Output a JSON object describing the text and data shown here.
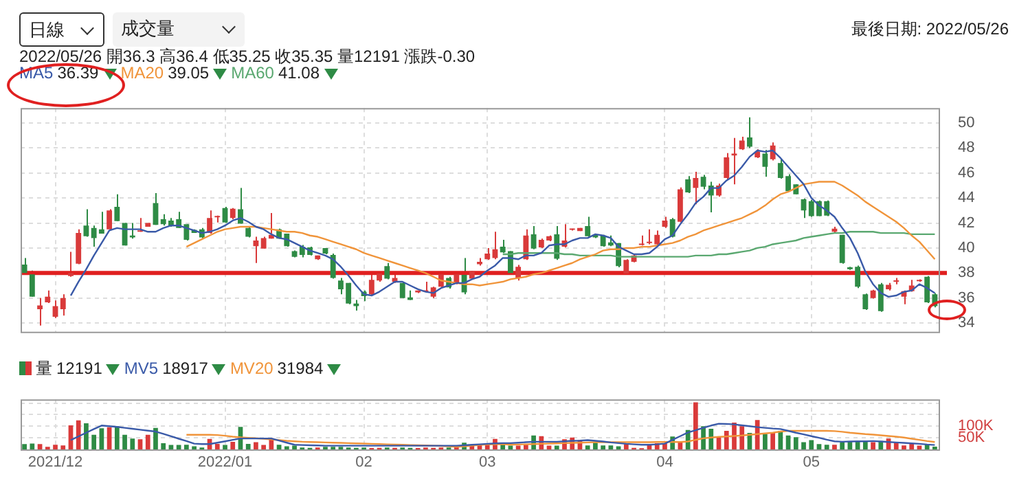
{
  "chart_data": [
    {
      "type": "candlestick",
      "title": "最後日期: 2022/05/26",
      "annotations": [
        "日線",
        "成交量",
        "2022/05/26 開36.3 高36.4 低35.25 收35.35 量12191 漲跌-0.30",
        "36.39",
        "39.05",
        "41.08"
      ],
      "categories": [
        null,
        null,
        null,
        null,
        "2021/12",
        null,
        null,
        null,
        null,
        null,
        null,
        null,
        null,
        null,
        null,
        null,
        null,
        null,
        null,
        null,
        null,
        null,
        null,
        null,
        null,
        null,
        "2022/01",
        null,
        null,
        null,
        null,
        null,
        null,
        null,
        null,
        null,
        null,
        null,
        null,
        null,
        null,
        null,
        null,
        null,
        "02",
        null,
        null,
        null,
        null,
        null,
        null,
        null,
        null,
        null,
        null,
        null,
        null,
        null,
        null,
        null,
        "03",
        null,
        null,
        null,
        null,
        null,
        null,
        null,
        null,
        null,
        null,
        null,
        null,
        null,
        null,
        null,
        null,
        null,
        null,
        null,
        null,
        null,
        null,
        "04",
        null,
        null,
        null,
        null,
        null,
        null,
        null,
        null,
        null,
        null,
        null,
        null,
        null,
        null,
        null,
        null,
        null,
        null,
        "05",
        null,
        null,
        null,
        null,
        null,
        null,
        null,
        null,
        null,
        null,
        null,
        null,
        null,
        null,
        null,
        null
      ],
      "ohlc": [
        [
          38.67,
          39.2,
          38.0,
          38.0
        ],
        [
          37.9,
          38.2,
          36.1,
          36.1
        ],
        [
          35.1,
          36.0,
          33.8,
          35.4
        ],
        [
          35.65,
          36.6,
          35.6,
          36.1
        ],
        [
          34.5,
          35.8,
          34.4,
          35.35
        ],
        [
          35.1,
          36.3,
          34.6,
          36.0
        ],
        [
          37.75,
          39.7,
          37.7,
          38.0
        ],
        [
          38.75,
          41.5,
          38.7,
          41.2
        ],
        [
          41.8,
          43.1,
          40.9,
          40.95
        ],
        [
          41.6,
          41.8,
          40.1,
          40.8
        ],
        [
          41.5,
          42.9,
          41.15,
          41.15
        ],
        [
          41.5,
          43.1,
          41.4,
          43.0
        ],
        [
          43.3,
          44.3,
          42.15,
          42.15
        ],
        [
          42.0,
          42.0,
          40.2,
          40.2
        ],
        [
          41.0,
          42.0,
          40.75,
          40.85
        ],
        [
          41.3,
          42.4,
          41.3,
          41.35
        ],
        [
          41.7,
          42.0,
          41.7,
          42.0
        ],
        [
          43.6,
          44.4,
          41.85,
          41.85
        ],
        [
          42.3,
          42.7,
          41.8,
          41.9
        ],
        [
          42.2,
          42.4,
          41.7,
          41.8
        ],
        [
          42.3,
          42.9,
          41.6,
          41.6
        ],
        [
          41.9,
          41.9,
          40.6,
          40.65
        ],
        [
          41.45,
          41.5,
          41.2,
          41.2
        ],
        [
          41.5,
          41.6,
          40.75,
          40.85
        ],
        [
          41.2,
          43.0,
          41.15,
          42.4
        ],
        [
          42.45,
          42.6,
          42.05,
          42.5
        ],
        [
          43.2,
          43.3,
          42.0,
          42.05
        ],
        [
          42.4,
          43.2,
          42.3,
          43.15
        ],
        [
          43.1,
          44.8,
          41.95,
          41.95
        ],
        [
          41.6,
          41.7,
          40.85,
          40.9
        ],
        [
          40.15,
          40.9,
          38.8,
          40.6
        ],
        [
          39.95,
          40.9,
          39.95,
          40.8
        ],
        [
          40.75,
          42.8,
          40.75,
          41.05
        ],
        [
          41.5,
          41.55,
          40.75,
          40.75
        ],
        [
          41.15,
          41.15,
          40.1,
          40.15
        ],
        [
          39.75,
          39.8,
          39.25,
          39.3
        ],
        [
          40.1,
          40.25,
          39.25,
          39.45
        ],
        [
          40.05,
          40.1,
          39.4,
          39.45
        ],
        [
          39.1,
          39.4,
          39.05,
          39.4
        ],
        [
          40.0,
          40.0,
          39.5,
          39.55
        ],
        [
          39.45,
          39.55,
          37.55,
          37.6
        ],
        [
          37.4,
          37.6,
          36.3,
          36.7
        ],
        [
          37.2,
          37.2,
          35.5,
          35.55
        ],
        [
          35.55,
          35.85,
          35.0,
          35.35
        ],
        [
          36.5,
          36.6,
          35.75,
          36.15
        ],
        [
          36.3,
          37.95,
          36.2,
          37.45
        ],
        [
          37.4,
          37.95,
          37.3,
          37.95
        ],
        [
          38.55,
          38.8,
          37.5,
          37.55
        ],
        [
          37.3,
          38.1,
          37.2,
          37.6
        ],
        [
          37.2,
          37.25,
          36.0,
          36.0
        ],
        [
          36.05,
          36.6,
          35.85,
          35.85
        ],
        [
          36.45,
          36.6,
          36.4,
          36.6
        ],
        [
          36.5,
          37.3,
          36.45,
          36.6
        ],
        [
          36.1,
          36.9,
          36.0,
          36.85
        ],
        [
          36.9,
          37.95,
          36.85,
          37.9
        ],
        [
          37.6,
          37.7,
          36.75,
          36.85
        ],
        [
          37.2,
          38.0,
          37.1,
          37.9
        ],
        [
          37.85,
          39.2,
          36.3,
          36.45
        ],
        [
          37.55,
          38.15,
          37.5,
          38.15
        ],
        [
          38.7,
          39.2,
          38.6,
          38.9
        ],
        [
          39.1,
          40.0,
          39.05,
          39.55
        ],
        [
          39.2,
          41.3,
          39.1,
          39.9
        ],
        [
          40.1,
          40.65,
          39.6,
          39.65
        ],
        [
          39.75,
          39.75,
          37.9,
          38.0
        ],
        [
          37.6,
          38.65,
          37.4,
          38.5
        ],
        [
          39.1,
          41.5,
          39.05,
          41.0
        ],
        [
          41.1,
          41.75,
          39.9,
          39.95
        ],
        [
          40.05,
          40.75,
          40.0,
          40.65
        ],
        [
          40.6,
          41.0,
          40.55,
          40.95
        ],
        [
          41.1,
          41.75,
          39.05,
          39.15
        ],
        [
          40.1,
          41.9,
          40.05,
          40.6
        ],
        [
          41.45,
          41.55,
          41.4,
          41.5
        ],
        [
          41.35,
          41.6,
          41.35,
          41.6
        ],
        [
          41.75,
          42.5,
          40.9,
          40.95
        ],
        [
          41.05,
          41.1,
          40.8,
          40.85
        ],
        [
          41.0,
          41.05,
          40.1,
          40.15
        ],
        [
          40.45,
          41.0,
          40.15,
          40.2
        ],
        [
          40.4,
          40.4,
          38.45,
          38.55
        ],
        [
          37.95,
          39.1,
          37.9,
          39.05
        ],
        [
          38.9,
          39.45,
          38.85,
          39.4
        ],
        [
          40.25,
          41.0,
          40.2,
          40.3
        ],
        [
          40.4,
          41.5,
          40.3,
          40.45
        ],
        [
          40.3,
          41.4,
          40.25,
          41.05
        ],
        [
          41.7,
          42.5,
          41.6,
          42.2
        ],
        [
          42.3,
          42.4,
          40.85,
          40.9
        ],
        [
          42.1,
          44.85,
          42.05,
          44.7
        ],
        [
          45.5,
          45.75,
          44.4,
          44.45
        ],
        [
          44.8,
          46.1,
          43.5,
          45.6
        ],
        [
          45.7,
          45.85,
          44.7,
          44.9
        ],
        [
          45.0,
          45.3,
          42.85,
          44.2
        ],
        [
          44.2,
          45.15,
          44.1,
          45.0
        ],
        [
          45.6,
          47.6,
          45.5,
          47.25
        ],
        [
          47.4,
          48.8,
          45.1,
          47.55
        ],
        [
          47.9,
          48.9,
          47.85,
          48.6
        ],
        [
          48.85,
          50.45,
          48.0,
          48.1
        ],
        [
          47.25,
          47.9,
          47.2,
          47.7
        ],
        [
          47.55,
          47.85,
          45.7,
          46.5
        ],
        [
          47.1,
          48.45,
          47.0,
          48.2
        ],
        [
          46.8,
          47.1,
          45.55,
          45.6
        ],
        [
          45.75,
          45.9,
          44.5,
          44.55
        ],
        [
          45.1,
          45.1,
          44.3,
          44.3
        ],
        [
          43.9,
          43.95,
          42.4,
          43.0
        ],
        [
          43.75,
          43.85,
          42.5,
          42.55
        ],
        [
          43.75,
          43.8,
          42.55,
          42.55
        ],
        [
          43.75,
          43.8,
          42.55,
          42.6
        ],
        [
          41.3,
          41.7,
          41.2,
          41.55
        ],
        [
          41.05,
          41.05,
          38.75,
          38.8
        ],
        [
          38.45,
          38.5,
          38.25,
          38.3
        ],
        [
          38.5,
          38.6,
          36.8,
          36.9
        ],
        [
          36.3,
          36.35,
          35.05,
          35.1
        ],
        [
          36.0,
          36.65,
          35.95,
          36.6
        ],
        [
          37.1,
          37.2,
          34.9,
          34.95
        ],
        [
          36.7,
          37.2,
          36.6,
          37.05
        ],
        [
          37.3,
          37.6,
          37.1,
          37.4
        ],
        [
          36.1,
          36.6,
          35.5,
          36.55
        ],
        [
          36.55,
          37.45,
          36.5,
          37.0
        ],
        [
          37.35,
          37.5,
          37.3,
          37.4
        ],
        [
          37.7,
          37.75,
          35.6,
          35.65
        ],
        [
          36.3,
          36.4,
          35.25,
          35.35
        ]
      ],
      "colors": [
        "#2e8b45",
        "#2e8b45",
        "#d93a3a",
        "#d93a3a",
        "#d93a3a",
        "#d93a3a",
        "#d93a3a",
        "#d93a3a",
        "#2e8b45",
        "#2e8b45",
        "#2e8b45",
        "#d93a3a",
        "#2e8b45",
        "#2e8b45",
        "#2e8b45",
        "#d93a3a",
        "#d93a3a",
        "#2e8b45",
        "#2e8b45",
        "#2e8b45",
        "#2e8b45",
        "#2e8b45",
        "#2e8b45",
        "#2e8b45",
        "#d93a3a",
        "#d93a3a",
        "#2e8b45",
        "#d93a3a",
        "#2e8b45",
        "#2e8b45",
        "#d93a3a",
        "#d93a3a",
        "#d93a3a",
        "#2e8b45",
        "#2e8b45",
        "#2e8b45",
        "#2e8b45",
        "#2e8b45",
        "#d93a3a",
        "#2e8b45",
        "#2e8b45",
        "#2e8b45",
        "#2e8b45",
        "#2e8b45",
        "#2e8b45",
        "#d93a3a",
        "#d93a3a",
        "#2e8b45",
        "#d93a3a",
        "#2e8b45",
        "#2e8b45",
        "#d93a3a",
        "#d93a3a",
        "#d93a3a",
        "#d93a3a",
        "#2e8b45",
        "#d93a3a",
        "#2e8b45",
        "#d93a3a",
        "#d93a3a",
        "#d93a3a",
        "#d93a3a",
        "#2e8b45",
        "#2e8b45",
        "#d93a3a",
        "#d93a3a",
        "#2e8b45",
        "#d93a3a",
        "#d93a3a",
        "#2e8b45",
        "#d93a3a",
        "#d93a3a",
        "#d93a3a",
        "#2e8b45",
        "#2e8b45",
        "#2e8b45",
        "#2e8b45",
        "#2e8b45",
        "#d93a3a",
        "#d93a3a",
        "#d93a3a",
        "#d93a3a",
        "#d93a3a",
        "#d93a3a",
        "#2e8b45",
        "#d93a3a",
        "#2e8b45",
        "#d93a3a",
        "#2e8b45",
        "#2e8b45",
        "#d93a3a",
        "#d93a3a",
        "#d93a3a",
        "#d93a3a",
        "#2e8b45",
        "#d93a3a",
        "#2e8b45",
        "#d93a3a",
        "#2e8b45",
        "#2e8b45",
        "#2e8b45",
        "#2e8b45",
        "#2e8b45",
        "#2e8b45",
        "#2e8b45",
        "#d93a3a",
        "#2e8b45",
        "#2e8b45",
        "#2e8b45",
        "#2e8b45",
        "#d93a3a",
        "#2e8b45",
        "#d93a3a",
        "#d93a3a",
        "#d93a3a",
        "#d93a3a",
        "#d93a3a",
        "#2e8b45",
        "#2e8b45"
      ],
      "series": [
        {
          "name": "MA5",
          "type": "line",
          "color": "#3a5aa8",
          "values": [
            null,
            null,
            null,
            null,
            null,
            null,
            36.2,
            37.3,
            38.3,
            39.4,
            40.4,
            41.4,
            41.6,
            41.5,
            41.5,
            41.5,
            41.3,
            41.3,
            41.6,
            41.8,
            41.8,
            41.6,
            41.4,
            41.2,
            41.3,
            41.5,
            41.8,
            42.2,
            42.4,
            42.1,
            41.7,
            41.5,
            41.1,
            40.8,
            40.7,
            40.4,
            40.1,
            39.8,
            39.6,
            39.4,
            39.1,
            38.5,
            37.8,
            37.0,
            36.3,
            36.2,
            36.5,
            36.9,
            37.3,
            37.3,
            37.0,
            36.7,
            36.5,
            36.4,
            36.8,
            37.0,
            37.2,
            37.2,
            37.5,
            37.7,
            38.2,
            38.6,
            39.2,
            39.2,
            39.1,
            39.4,
            39.4,
            39.6,
            40.2,
            40.3,
            40.3,
            40.6,
            40.8,
            40.8,
            41.1,
            41.0,
            40.8,
            40.1,
            39.8,
            39.5,
            39.5,
            39.6,
            40.1,
            40.7,
            41.0,
            41.9,
            42.7,
            43.6,
            44.1,
            44.8,
            44.8,
            45.4,
            45.8,
            46.5,
            47.3,
            47.8,
            47.7,
            47.8,
            47.2,
            46.5,
            45.8,
            45.1,
            44.0,
            43.4,
            43.0,
            42.5,
            41.6,
            40.8,
            39.6,
            38.1,
            37.1,
            36.4,
            36.1,
            36.2,
            36.5,
            36.6,
            37.1,
            36.8,
            36.4
          ]
        },
        {
          "name": "MA20",
          "type": "line",
          "color": "#f0943a",
          "values": [
            null,
            null,
            null,
            null,
            null,
            null,
            null,
            null,
            null,
            null,
            null,
            null,
            null,
            null,
            null,
            null,
            null,
            null,
            null,
            null,
            null,
            40.1,
            40.4,
            40.7,
            41.0,
            41.3,
            41.5,
            41.6,
            41.7,
            41.7,
            41.7,
            41.6,
            41.5,
            41.4,
            41.3,
            41.3,
            41.2,
            41.0,
            40.9,
            40.7,
            40.5,
            40.3,
            40.1,
            39.9,
            39.6,
            39.4,
            39.2,
            39.0,
            38.8,
            38.6,
            38.4,
            38.2,
            38.0,
            37.7,
            37.4,
            37.3,
            37.2,
            37.1,
            37.1,
            37.0,
            37.1,
            37.2,
            37.3,
            37.5,
            37.6,
            37.7,
            37.9,
            38.0,
            38.2,
            38.4,
            38.6,
            38.8,
            39.1,
            39.3,
            39.5,
            39.8,
            39.9,
            39.9,
            40.0,
            40.0,
            40.1,
            40.1,
            40.2,
            40.3,
            40.4,
            40.6,
            40.9,
            41.1,
            41.4,
            41.6,
            41.8,
            42.0,
            42.2,
            42.4,
            42.7,
            43.0,
            43.4,
            43.9,
            44.3,
            44.5,
            44.8,
            45.1,
            45.2,
            45.3,
            45.3,
            45.3,
            45.0,
            44.6,
            44.2,
            43.7,
            43.3,
            42.9,
            42.5,
            42.1,
            41.6,
            41.0,
            40.5,
            39.8,
            39.1
          ]
        },
        {
          "name": "MA60",
          "type": "line",
          "color": "#5aa870",
          "values": [
            null,
            null,
            null,
            null,
            null,
            null,
            null,
            null,
            null,
            null,
            null,
            null,
            null,
            null,
            null,
            null,
            null,
            null,
            null,
            null,
            null,
            null,
            null,
            null,
            null,
            null,
            null,
            null,
            null,
            null,
            null,
            null,
            null,
            null,
            null,
            null,
            null,
            null,
            null,
            null,
            null,
            null,
            null,
            null,
            null,
            null,
            null,
            null,
            null,
            null,
            null,
            null,
            null,
            null,
            null,
            null,
            null,
            null,
            null,
            null,
            null,
            null,
            39.5,
            39.5,
            39.6,
            39.6,
            39.6,
            39.6,
            39.6,
            39.6,
            39.5,
            39.5,
            39.4,
            39.4,
            39.4,
            39.4,
            39.4,
            39.3,
            39.3,
            39.3,
            39.3,
            39.3,
            39.3,
            39.3,
            39.3,
            39.3,
            39.3,
            39.4,
            39.4,
            39.4,
            39.5,
            39.5,
            39.6,
            39.7,
            39.8,
            40.0,
            40.1,
            40.3,
            40.4,
            40.5,
            40.6,
            40.8,
            40.9,
            41.0,
            41.1,
            41.2,
            41.2,
            41.3,
            41.3,
            41.3,
            41.3,
            41.2,
            41.2,
            41.2,
            41.2,
            41.1,
            41.1,
            41.1,
            41.1
          ]
        }
      ],
      "ylim": [
        33.3,
        51.2
      ],
      "yticks": [
        34,
        36,
        38,
        40,
        42,
        44,
        46,
        48,
        50
      ],
      "grid": true,
      "legend": "top left",
      "tick_labels": "y",
      "ref_lines": [
        {
          "axis": "y",
          "value": 38,
          "color": "#e02020"
        }
      ]
    },
    {
      "type": "bar",
      "annotations": [
        "12191",
        "18917",
        "31984"
      ],
      "categories": [
        null,
        null,
        null,
        null,
        "2021/12",
        null,
        null,
        null,
        null,
        null,
        null,
        null,
        null,
        null,
        null,
        null,
        null,
        null,
        null,
        null,
        null,
        null,
        null,
        null,
        null,
        null,
        "2022/01",
        null,
        null,
        null,
        null,
        null,
        null,
        null,
        null,
        null,
        null,
        null,
        null,
        null,
        null,
        null,
        null,
        null,
        "02",
        null,
        null,
        null,
        null,
        null,
        null,
        null,
        null,
        null,
        null,
        null,
        null,
        null,
        null,
        null,
        "03",
        null,
        null,
        null,
        null,
        null,
        null,
        null,
        null,
        null,
        null,
        null,
        null,
        null,
        null,
        null,
        null,
        null,
        null,
        null,
        null,
        null,
        null,
        "04",
        null,
        null,
        null,
        null,
        null,
        null,
        null,
        null,
        null,
        null,
        null,
        null,
        null,
        null,
        null,
        null,
        null,
        null,
        "05",
        null,
        null,
        null,
        null,
        null,
        null,
        null,
        null,
        null,
        null,
        null,
        null,
        null,
        null,
        null,
        null
      ],
      "series": [
        {
          "name": "量",
          "type": "bar",
          "values": [
            23000,
            25000,
            23000,
            11000,
            20000,
            17000,
            104000,
            125000,
            113000,
            63000,
            91000,
            96000,
            100000,
            63000,
            47000,
            44000,
            63000,
            93000,
            27000,
            19000,
            19000,
            20000,
            13000,
            8000,
            45000,
            24000,
            19000,
            33000,
            97000,
            24000,
            31000,
            19000,
            48000,
            20000,
            13000,
            16000,
            8000,
            7000,
            8000,
            11000,
            11000,
            11000,
            8000,
            7000,
            8000,
            6000,
            7000,
            8000,
            7000,
            8000,
            7000,
            6000,
            8000,
            7000,
            8000,
            8000,
            9000,
            29000,
            16000,
            20000,
            24000,
            45000,
            27000,
            16000,
            16000,
            20000,
            60000,
            57000,
            16000,
            16000,
            44000,
            51000,
            40000,
            17000,
            29000,
            17000,
            17000,
            13000,
            23000,
            7000,
            5000,
            20000,
            27000,
            27000,
            56000,
            31000,
            84000,
            203000,
            100000,
            89000,
            56000,
            80000,
            116000,
            100000,
            71000,
            127000,
            67000,
            71000,
            80000,
            60000,
            53000,
            31000,
            40000,
            23000,
            20000,
            20000,
            31000,
            33000,
            36000,
            36000,
            31000,
            36000,
            47000,
            29000,
            17000,
            24000,
            16000,
            24000,
            12000
          ],
          "colors": [
            "#2e8b45",
            "#2e8b45",
            "#d93a3a",
            "#d93a3a",
            "#d93a3a",
            "#d93a3a",
            "#d93a3a",
            "#d93a3a",
            "#2e8b45",
            "#2e8b45",
            "#2e8b45",
            "#d93a3a",
            "#2e8b45",
            "#2e8b45",
            "#2e8b45",
            "#d93a3a",
            "#d93a3a",
            "#2e8b45",
            "#2e8b45",
            "#2e8b45",
            "#2e8b45",
            "#2e8b45",
            "#2e8b45",
            "#2e8b45",
            "#d93a3a",
            "#d93a3a",
            "#2e8b45",
            "#d93a3a",
            "#2e8b45",
            "#2e8b45",
            "#d93a3a",
            "#d93a3a",
            "#d93a3a",
            "#2e8b45",
            "#2e8b45",
            "#2e8b45",
            "#2e8b45",
            "#2e8b45",
            "#d93a3a",
            "#2e8b45",
            "#2e8b45",
            "#2e8b45",
            "#2e8b45",
            "#2e8b45",
            "#2e8b45",
            "#d93a3a",
            "#d93a3a",
            "#2e8b45",
            "#d93a3a",
            "#2e8b45",
            "#2e8b45",
            "#d93a3a",
            "#d93a3a",
            "#d93a3a",
            "#d93a3a",
            "#2e8b45",
            "#d93a3a",
            "#2e8b45",
            "#d93a3a",
            "#d93a3a",
            "#d93a3a",
            "#d93a3a",
            "#2e8b45",
            "#2e8b45",
            "#d93a3a",
            "#d93a3a",
            "#2e8b45",
            "#d93a3a",
            "#d93a3a",
            "#2e8b45",
            "#d93a3a",
            "#d93a3a",
            "#d93a3a",
            "#2e8b45",
            "#2e8b45",
            "#2e8b45",
            "#2e8b45",
            "#2e8b45",
            "#d93a3a",
            "#d93a3a",
            "#d93a3a",
            "#d93a3a",
            "#d93a3a",
            "#d93a3a",
            "#2e8b45",
            "#d93a3a",
            "#2e8b45",
            "#d93a3a",
            "#2e8b45",
            "#2e8b45",
            "#d93a3a",
            "#d93a3a",
            "#d93a3a",
            "#d93a3a",
            "#2e8b45",
            "#d93a3a",
            "#2e8b45",
            "#d93a3a",
            "#2e8b45",
            "#2e8b45",
            "#2e8b45",
            "#2e8b45",
            "#2e8b45",
            "#2e8b45",
            "#2e8b45",
            "#d93a3a",
            "#2e8b45",
            "#2e8b45",
            "#2e8b45",
            "#2e8b45",
            "#d93a3a",
            "#2e8b45",
            "#d93a3a",
            "#d93a3a",
            "#d93a3a",
            "#d93a3a",
            "#d93a3a",
            "#2e8b45",
            "#2e8b45"
          ]
        },
        {
          "name": "MV5",
          "type": "line",
          "color": "#3a5aa8",
          "values": [
            null,
            null,
            null,
            null,
            null,
            null,
            40000,
            56000,
            72000,
            88000,
            103000,
            100000,
            97000,
            93000,
            89000,
            85000,
            81000,
            77000,
            67000,
            57000,
            46000,
            36000,
            25000,
            23000,
            23000,
            29000,
            35000,
            41000,
            47000,
            47000,
            47000,
            47000,
            47000,
            38000,
            29000,
            20000,
            19000,
            18000,
            17000,
            16000,
            16000,
            16000,
            16000,
            16000,
            16000,
            16000,
            16000,
            16000,
            16000,
            16000,
            16000,
            16000,
            16000,
            16000,
            16000,
            16000,
            16000,
            18000,
            20000,
            22000,
            24000,
            26000,
            27000,
            27000,
            29000,
            31000,
            33000,
            33000,
            33000,
            33000,
            35000,
            37000,
            38000,
            40000,
            37000,
            34000,
            30000,
            27000,
            24000,
            22000,
            20000,
            20000,
            22000,
            25000,
            41000,
            57000,
            73000,
            83000,
            93000,
            103000,
            111000,
            110000,
            108000,
            104000,
            100000,
            96000,
            93000,
            90000,
            88000,
            80000,
            72000,
            65000,
            57000,
            50000,
            42000,
            35000,
            33000,
            34000,
            35000,
            35000,
            36000,
            34000,
            32000,
            30000,
            28000,
            26000,
            24000,
            21000,
            19000
          ]
        },
        {
          "name": "MV20",
          "type": "line",
          "color": "#f0943a",
          "values": [
            null,
            null,
            null,
            null,
            null,
            null,
            null,
            null,
            null,
            null,
            null,
            null,
            null,
            null,
            null,
            null,
            null,
            null,
            null,
            null,
            null,
            63000,
            63000,
            63000,
            63000,
            62000,
            59000,
            55000,
            52000,
            50000,
            48000,
            46000,
            43000,
            40000,
            37000,
            35000,
            33000,
            32000,
            31000,
            30000,
            29000,
            28000,
            27000,
            26000,
            25000,
            24000,
            23000,
            22000,
            21000,
            20000,
            19000,
            18000,
            17000,
            16000,
            15000,
            13000,
            11000,
            13000,
            16000,
            19000,
            21000,
            22000,
            23000,
            20000,
            21000,
            22000,
            23000,
            24000,
            25000,
            26000,
            27000,
            28000,
            29000,
            30000,
            31000,
            31000,
            31000,
            31000,
            31000,
            31000,
            31000,
            31000,
            32000,
            32000,
            32000,
            32000,
            34000,
            41000,
            48000,
            51000,
            54000,
            56000,
            58000,
            60000,
            63000,
            66000,
            69000,
            72000,
            77000,
            80000,
            80000,
            80000,
            80000,
            80000,
            80000,
            79000,
            76000,
            72000,
            69000,
            66000,
            64000,
            61000,
            58000,
            55000,
            51000,
            46000,
            41000,
            36000,
            32000
          ]
        }
      ],
      "ylim": [
        0,
        216000
      ],
      "yticks": [
        {
          "value": 50000,
          "label": "50K"
        },
        {
          "value": 100000,
          "label": "100K"
        },
        {
          "value": 150000,
          "label": null
        },
        {
          "value": 200000,
          "label": null
        }
      ],
      "grid": true,
      "legend": "top left"
    }
  ]
}
